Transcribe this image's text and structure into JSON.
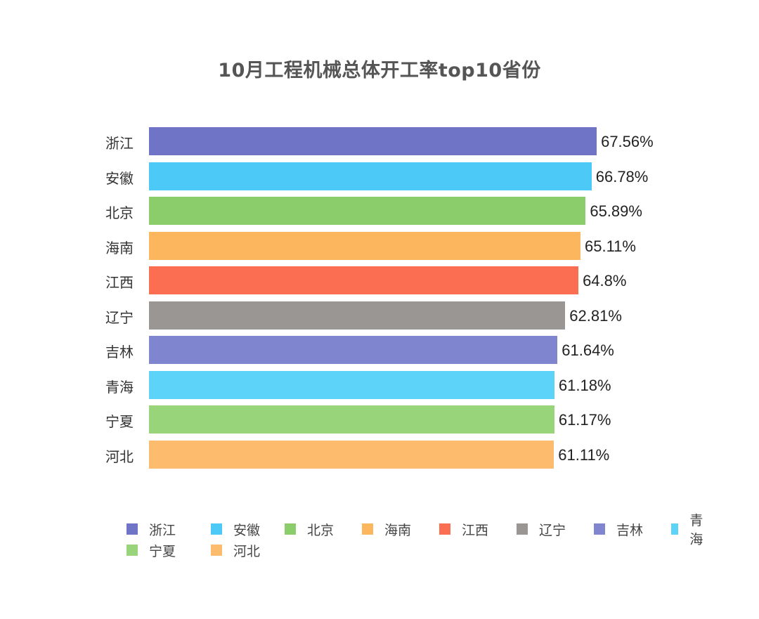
{
  "title": "10月工程机械总体开工率top10省份",
  "chart_data": {
    "type": "bar",
    "orientation": "horizontal",
    "title": "10月工程机械总体开工率top10省份",
    "xlabel": "",
    "ylabel": "",
    "grid": false,
    "legend_position": "bottom",
    "categories": [
      "浙江",
      "安徽",
      "北京",
      "海南",
      "江西",
      "辽宁",
      "吉林",
      "青海",
      "宁夏",
      "河北"
    ],
    "values": [
      67.56,
      66.78,
      65.89,
      65.11,
      64.8,
      62.81,
      61.64,
      61.18,
      61.17,
      61.11
    ],
    "value_labels": [
      "67.56%",
      "66.78%",
      "65.89%",
      "65.11%",
      "64.8%",
      "62.81%",
      "61.64%",
      "61.18%",
      "61.17%",
      "61.11%"
    ],
    "colors": [
      "#6f74c6",
      "#4cc9f7",
      "#8bcd6b",
      "#fcb65e",
      "#fb6e52",
      "#9a9693",
      "#7f86cf",
      "#5dd3fa",
      "#98d57a",
      "#fdbb6e"
    ],
    "unit": "%",
    "xlim": [
      0,
      70
    ]
  },
  "legend": [
    {
      "label": "浙江",
      "color": "#6f74c6"
    },
    {
      "label": "安徽",
      "color": "#4cc9f7"
    },
    {
      "label": "北京",
      "color": "#8bcd6b"
    },
    {
      "label": "海南",
      "color": "#fcb65e"
    },
    {
      "label": "江西",
      "color": "#fb6e52"
    },
    {
      "label": "辽宁",
      "color": "#9a9693"
    },
    {
      "label": "吉林",
      "color": "#7f86cf"
    },
    {
      "label": "青海",
      "color": "#5dd3fa"
    },
    {
      "label": "宁夏",
      "color": "#98d57a"
    },
    {
      "label": "河北",
      "color": "#fdbb6e"
    }
  ]
}
